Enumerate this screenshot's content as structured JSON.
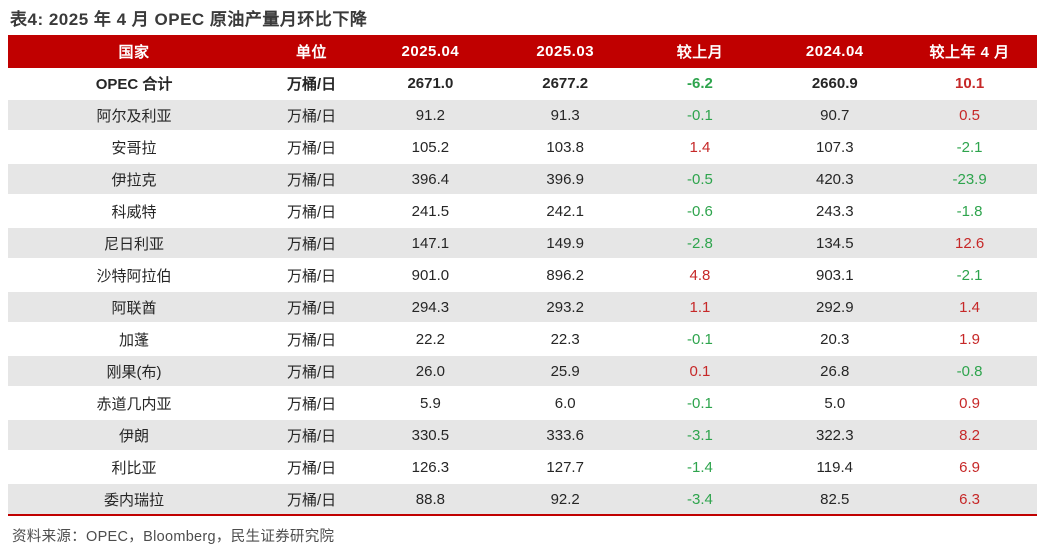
{
  "page": {
    "title": "表4: 2025 年 4 月 OPEC 原油产量月环比下降",
    "source": "资料来源：OPEC，Bloomberg，民生证券研究院"
  },
  "colors": {
    "header_bg": "#c00000",
    "positive_change": "#c62828",
    "negative_change": "#2ea44d",
    "stripe_row_bg": "#e6e6e6",
    "bottom_rule": "#c00000"
  },
  "chart_data": {
    "type": "table",
    "title": "表4: 2025 年 4 月 OPEC 原油产量月环比下降",
    "columns": [
      "国家",
      "单位",
      "2025.04",
      "2025.03",
      "较上月",
      "2024.04",
      "较上年 4 月"
    ],
    "layout_hints": {
      "header_style": "red background, white bold text",
      "striping": "alternating white / light gray rows",
      "change_color_rule": "negative values green, positive values red"
    },
    "rows": [
      {
        "country": "OPEC 合计",
        "unit": "万桶/日",
        "v_2025_04": "2671.0",
        "v_2025_03": "2677.2",
        "mom": "-6.2",
        "v_2024_04": "2660.9",
        "yoy": "10.1",
        "bold": true
      },
      {
        "country": "阿尔及利亚",
        "unit": "万桶/日",
        "v_2025_04": "91.2",
        "v_2025_03": "91.3",
        "mom": "-0.1",
        "v_2024_04": "90.7",
        "yoy": "0.5",
        "bold": false
      },
      {
        "country": "安哥拉",
        "unit": "万桶/日",
        "v_2025_04": "105.2",
        "v_2025_03": "103.8",
        "mom": "1.4",
        "v_2024_04": "107.3",
        "yoy": "-2.1",
        "bold": false
      },
      {
        "country": "伊拉克",
        "unit": "万桶/日",
        "v_2025_04": "396.4",
        "v_2025_03": "396.9",
        "mom": "-0.5",
        "v_2024_04": "420.3",
        "yoy": "-23.9",
        "bold": false
      },
      {
        "country": "科威特",
        "unit": "万桶/日",
        "v_2025_04": "241.5",
        "v_2025_03": "242.1",
        "mom": "-0.6",
        "v_2024_04": "243.3",
        "yoy": "-1.8",
        "bold": false
      },
      {
        "country": "尼日利亚",
        "unit": "万桶/日",
        "v_2025_04": "147.1",
        "v_2025_03": "149.9",
        "mom": "-2.8",
        "v_2024_04": "134.5",
        "yoy": "12.6",
        "bold": false
      },
      {
        "country": "沙特阿拉伯",
        "unit": "万桶/日",
        "v_2025_04": "901.0",
        "v_2025_03": "896.2",
        "mom": "4.8",
        "v_2024_04": "903.1",
        "yoy": "-2.1",
        "bold": false
      },
      {
        "country": "阿联酋",
        "unit": "万桶/日",
        "v_2025_04": "294.3",
        "v_2025_03": "293.2",
        "mom": "1.1",
        "v_2024_04": "292.9",
        "yoy": "1.4",
        "bold": false
      },
      {
        "country": "加蓬",
        "unit": "万桶/日",
        "v_2025_04": "22.2",
        "v_2025_03": "22.3",
        "mom": "-0.1",
        "v_2024_04": "20.3",
        "yoy": "1.9",
        "bold": false
      },
      {
        "country": "刚果(布)",
        "unit": "万桶/日",
        "v_2025_04": "26.0",
        "v_2025_03": "25.9",
        "mom": "0.1",
        "v_2024_04": "26.8",
        "yoy": "-0.8",
        "bold": false
      },
      {
        "country": "赤道几内亚",
        "unit": "万桶/日",
        "v_2025_04": "5.9",
        "v_2025_03": "6.0",
        "mom": "-0.1",
        "v_2024_04": "5.0",
        "yoy": "0.9",
        "bold": false
      },
      {
        "country": "伊朗",
        "unit": "万桶/日",
        "v_2025_04": "330.5",
        "v_2025_03": "333.6",
        "mom": "-3.1",
        "v_2024_04": "322.3",
        "yoy": "8.2",
        "bold": false
      },
      {
        "country": "利比亚",
        "unit": "万桶/日",
        "v_2025_04": "126.3",
        "v_2025_03": "127.7",
        "mom": "-1.4",
        "v_2024_04": "119.4",
        "yoy": "6.9",
        "bold": false
      },
      {
        "country": "委内瑞拉",
        "unit": "万桶/日",
        "v_2025_04": "88.8",
        "v_2025_03": "92.2",
        "mom": "-3.4",
        "v_2024_04": "82.5",
        "yoy": "6.3",
        "bold": false
      }
    ]
  }
}
